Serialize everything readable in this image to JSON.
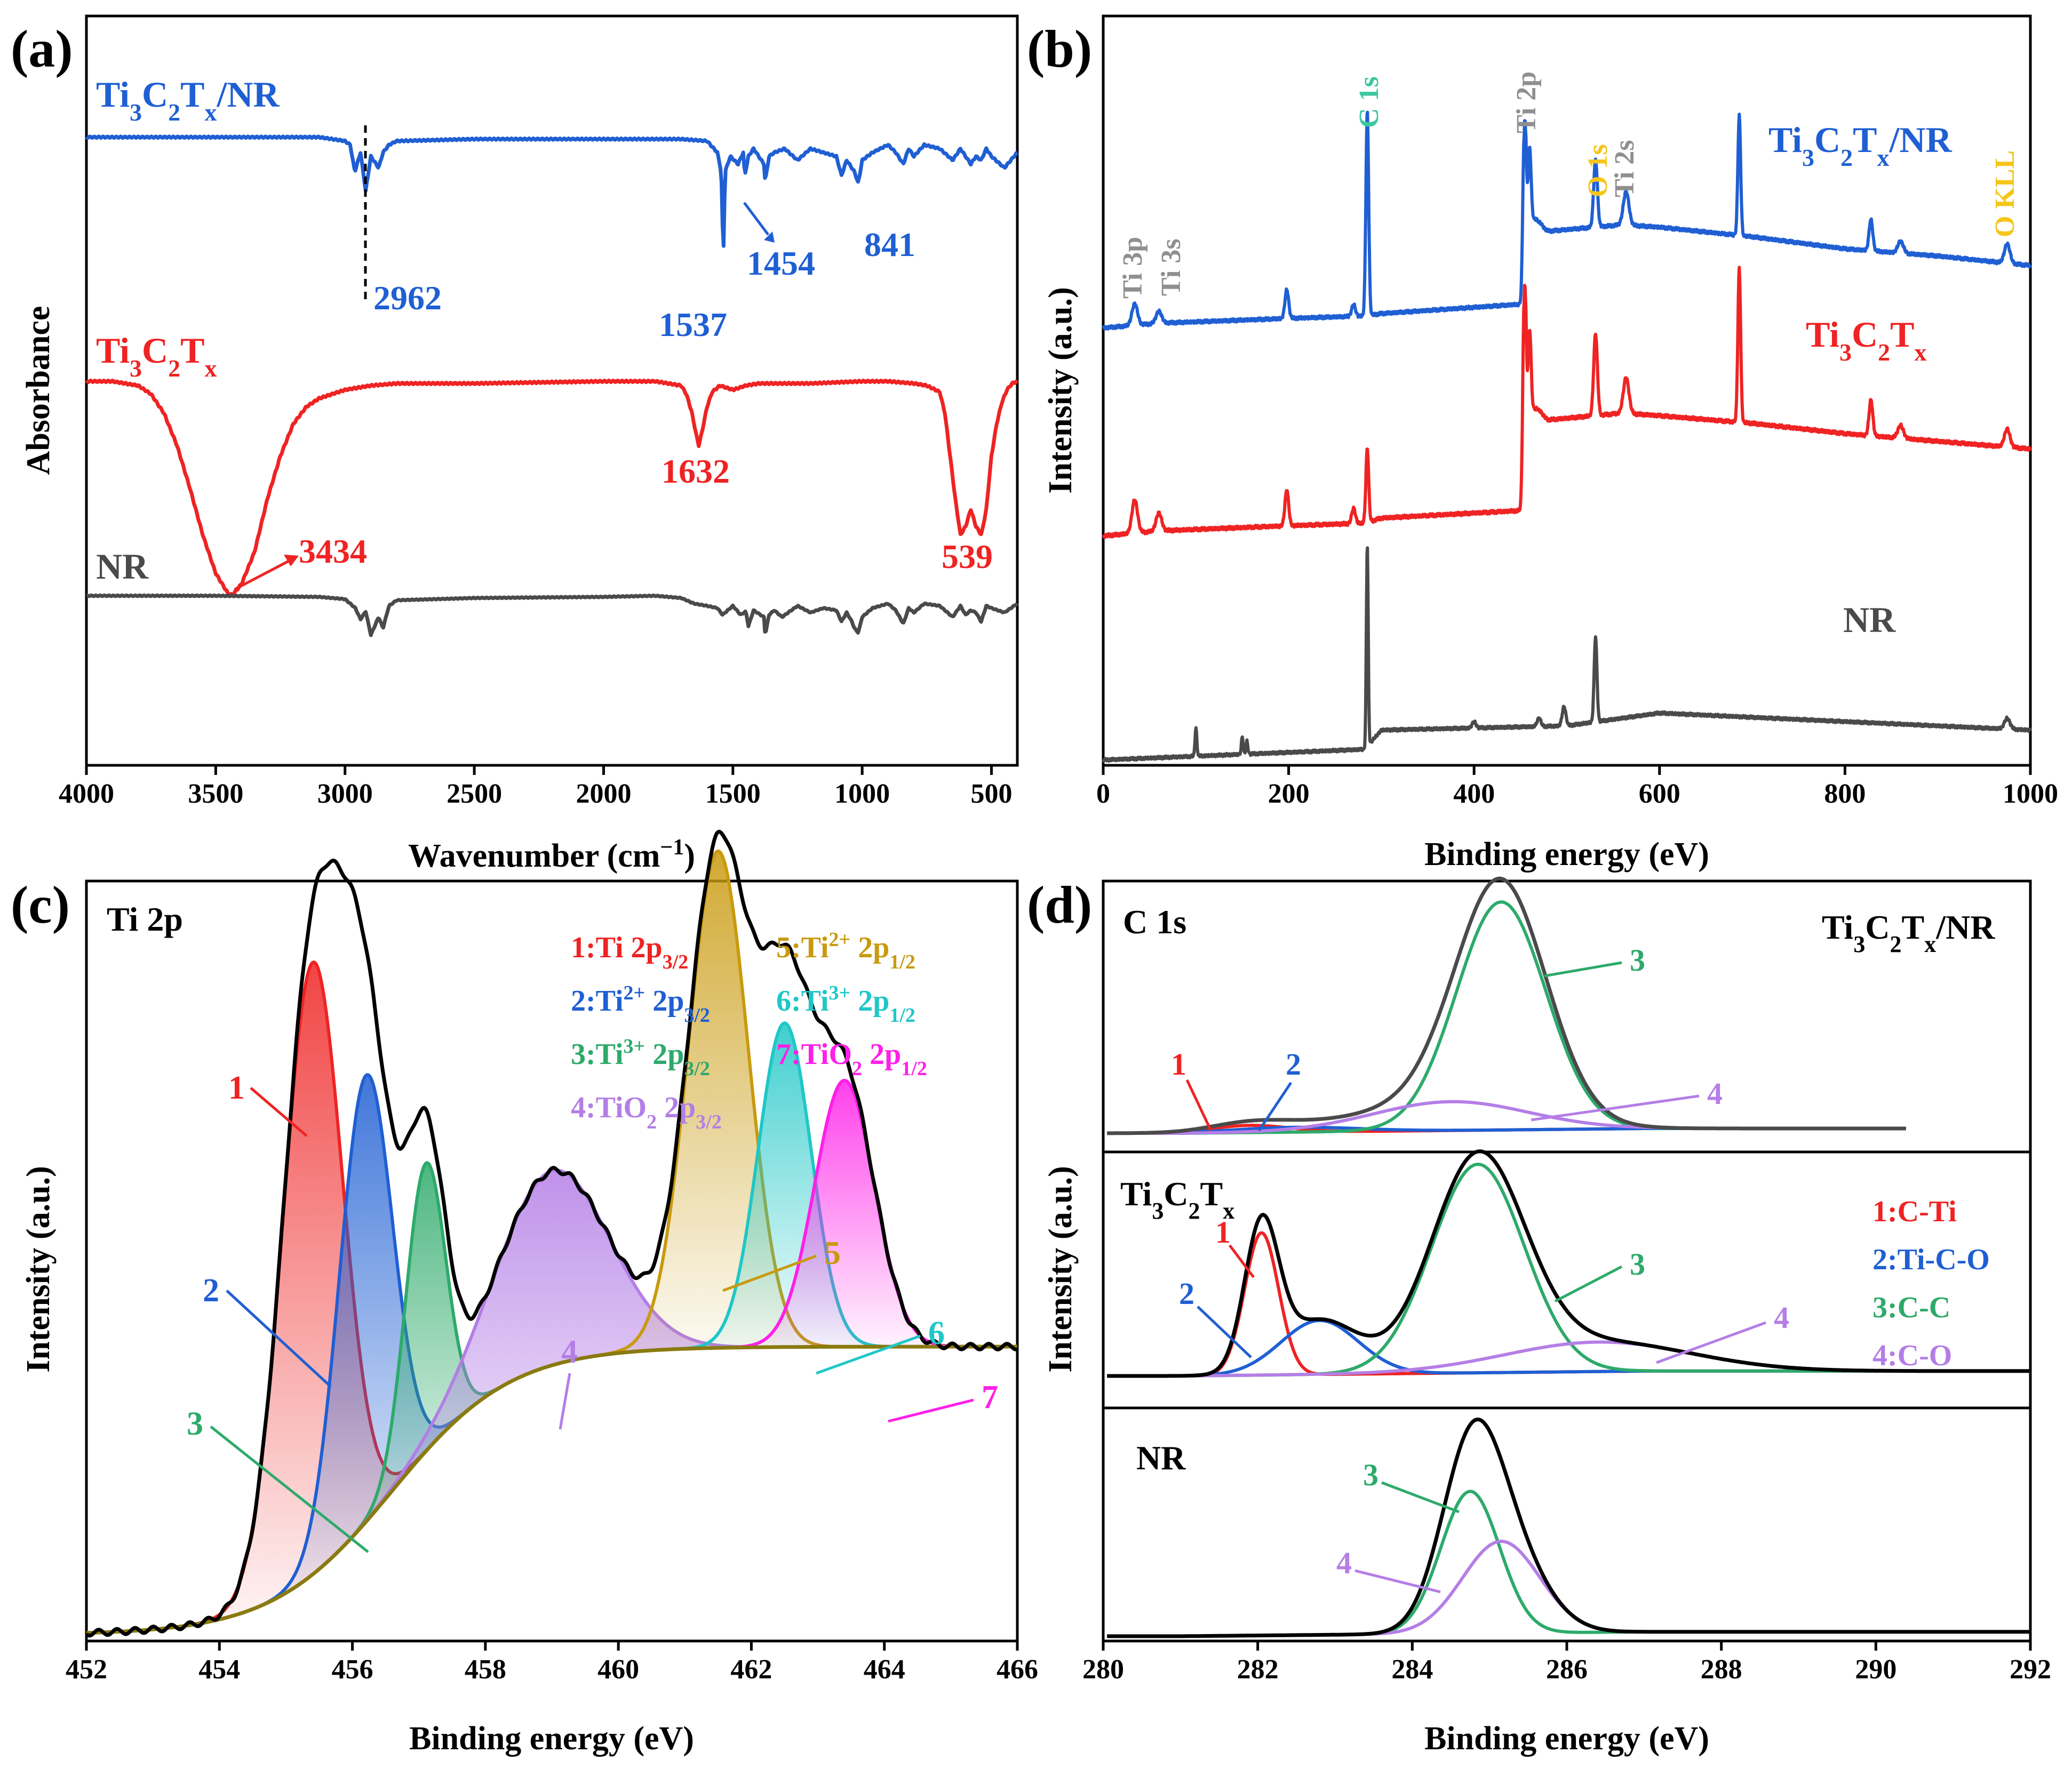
{
  "colors": {
    "blue": "#1f5fd3",
    "red": "#ef2323",
    "gray": "#4a4a4a",
    "black": "#000000",
    "green": "#2daa6a",
    "purple": "#b47ee6",
    "gold": "#c99a0e",
    "cyan": "#1fc7c7",
    "magenta": "#ff1fe8",
    "lightgray": "#8f8f8f",
    "teal": "#3cc7a0",
    "yellow": "#f5c518"
  },
  "chart_data": [
    {
      "panel": "(a)",
      "type": "line",
      "xlabel": "Wavenumber (cm−1)",
      "ylabel": "Absorbance",
      "xlim": [
        4000,
        400
      ],
      "xticks": [
        "4000",
        "3500",
        "3000",
        "2500",
        "2000",
        "1500",
        "1000",
        "500"
      ],
      "series": [
        {
          "name": "Ti3C2Tx/NR",
          "label": "Ti₃C₂Tₓ/NR",
          "color": "blue",
          "peaks": [
            "2962",
            "1537",
            "1454",
            "841"
          ],
          "x": [
            4000,
            3500,
            3100,
            3000,
            2980,
            2962,
            2940,
            2920,
            2900,
            2870,
            2853,
            2830,
            2800,
            2500,
            2000,
            1700,
            1600,
            1560,
            1545,
            1537,
            1530,
            1510,
            1480,
            1460,
            1454,
            1440,
            1420,
            1400,
            1380,
            1375,
            1360,
            1340,
            1300,
            1250,
            1200,
            1150,
            1100,
            1080,
            1060,
            1040,
            1030,
            1015,
            1000,
            960,
            900,
            870,
            841,
            820,
            800,
            760,
            700,
            650,
            620,
            600,
            580,
            560,
            540,
            520,
            500,
            450,
            400
          ],
          "y": [
            0.02,
            0.02,
            0.02,
            0.04,
            0.06,
            0.2,
            0.1,
            0.3,
            0.12,
            0.18,
            0.1,
            0.06,
            0.04,
            0.03,
            0.03,
            0.03,
            0.04,
            0.1,
            0.2,
            0.65,
            0.2,
            0.12,
            0.16,
            0.1,
            0.22,
            0.12,
            0.08,
            0.12,
            0.16,
            0.25,
            0.12,
            0.1,
            0.08,
            0.14,
            0.08,
            0.1,
            0.12,
            0.22,
            0.14,
            0.18,
            0.2,
            0.26,
            0.14,
            0.1,
            0.06,
            0.1,
            0.16,
            0.08,
            0.12,
            0.06,
            0.08,
            0.14,
            0.08,
            0.12,
            0.16,
            0.12,
            0.14,
            0.08,
            0.12,
            0.18,
            0.1
          ]
        },
        {
          "name": "Ti3C2Tx",
          "label": "Ti₃C₂Tₓ",
          "color": "red",
          "peaks": [
            "3434",
            "1632",
            "539"
          ],
          "x": [
            4000,
            3900,
            3800,
            3750,
            3700,
            3650,
            3600,
            3550,
            3500,
            3450,
            3434,
            3400,
            3350,
            3300,
            3250,
            3200,
            3150,
            3100,
            3000,
            2900,
            2800,
            2500,
            2000,
            1800,
            1700,
            1680,
            1660,
            1640,
            1632,
            1620,
            1600,
            1580,
            1550,
            1500,
            1450,
            1400,
            1200,
            1000,
            900,
            800,
            750,
            700,
            680,
            660,
            640,
            620,
            600,
            580,
            560,
            539,
            520,
            500,
            480,
            460,
            440,
            420,
            400
          ],
          "y": [
            0.0,
            0.0,
            0.02,
            0.06,
            0.15,
            0.3,
            0.5,
            0.72,
            0.9,
            1.0,
            1.0,
            0.95,
            0.8,
            0.55,
            0.35,
            0.2,
            0.12,
            0.08,
            0.04,
            0.02,
            0.01,
            0.01,
            0.0,
            0.0,
            0.02,
            0.06,
            0.14,
            0.26,
            0.3,
            0.24,
            0.12,
            0.05,
            0.02,
            0.04,
            0.02,
            0.01,
            0.01,
            0.0,
            0.0,
            0.01,
            0.02,
            0.05,
            0.15,
            0.35,
            0.55,
            0.72,
            0.68,
            0.6,
            0.68,
            0.72,
            0.6,
            0.35,
            0.2,
            0.1,
            0.04,
            0.01,
            0.0
          ]
        },
        {
          "name": "NR",
          "label": "NR",
          "color": "gray",
          "x": [
            4000,
            3500,
            3100,
            3000,
            2960,
            2940,
            2920,
            2900,
            2870,
            2853,
            2830,
            2800,
            2500,
            2000,
            1800,
            1700,
            1650,
            1600,
            1560,
            1540,
            1520,
            1500,
            1470,
            1450,
            1440,
            1420,
            1380,
            1375,
            1360,
            1340,
            1310,
            1250,
            1200,
            1150,
            1100,
            1080,
            1060,
            1040,
            1030,
            1015,
            1000,
            960,
            900,
            870,
            841,
            820,
            800,
            760,
            700,
            650,
            620,
            600,
            580,
            560,
            540,
            520,
            500,
            450,
            400
          ],
          "y": [
            0.01,
            0.01,
            0.02,
            0.04,
            0.12,
            0.22,
            0.15,
            0.36,
            0.2,
            0.3,
            0.1,
            0.05,
            0.03,
            0.02,
            0.01,
            0.03,
            0.08,
            0.1,
            0.12,
            0.18,
            0.14,
            0.1,
            0.18,
            0.15,
            0.28,
            0.14,
            0.2,
            0.36,
            0.18,
            0.14,
            0.2,
            0.1,
            0.16,
            0.12,
            0.14,
            0.24,
            0.16,
            0.24,
            0.3,
            0.34,
            0.2,
            0.12,
            0.08,
            0.14,
            0.26,
            0.12,
            0.16,
            0.08,
            0.1,
            0.2,
            0.1,
            0.18,
            0.14,
            0.16,
            0.24,
            0.1,
            0.12,
            0.16,
            0.08
          ]
        }
      ]
    },
    {
      "panel": "(b)",
      "type": "line",
      "xlabel": "Binding energy (eV)",
      "ylabel": "Intensity (a.u.)",
      "xlim": [
        0,
        1000
      ],
      "xticks": [
        "0",
        "200",
        "400",
        "600",
        "800",
        "1000"
      ],
      "annotations": [
        {
          "text": "Ti 3p",
          "color": "lightgray"
        },
        {
          "text": "Ti 3s",
          "color": "lightgray"
        },
        {
          "text": "C 1s",
          "color": "teal"
        },
        {
          "text": "Ti 2p",
          "color": "lightgray"
        },
        {
          "text": "O 1s",
          "color": "yellow"
        },
        {
          "text": "Ti 2s",
          "color": "lightgray"
        },
        {
          "text": "O KLL",
          "color": "yellow"
        }
      ],
      "series": [
        {
          "name": "Ti3C2Tx/NR",
          "label": "Ti₃C₂Tₓ/NR",
          "color": "blue",
          "base": [
            [
              0,
              0.0
            ],
            [
              60,
              0.02
            ],
            [
              200,
              0.04
            ],
            [
              282,
              0.05
            ],
            [
              300,
              0.06
            ],
            [
              454,
              0.1
            ],
            [
              456,
              0.5
            ],
            [
              470,
              0.4
            ],
            [
              560,
              0.43
            ],
            [
              600,
              0.42
            ],
            [
              700,
              0.38
            ],
            [
              800,
              0.33
            ],
            [
              900,
              0.3
            ],
            [
              1000,
              0.26
            ]
          ],
          "peaks": [
            [
              34,
              0.09,
              3
            ],
            [
              60,
              0.05,
              3
            ],
            [
              198,
              0.12,
              2
            ],
            [
              270,
              0.05,
              2
            ],
            [
              284.8,
              0.85,
              1.5
            ],
            [
              454,
              0.7,
              1.5
            ],
            [
              460,
              0.28,
              1.5
            ],
            [
              470,
              0.04,
              4
            ],
            [
              531,
              0.28,
              2
            ],
            [
              564,
              0.14,
              3
            ],
            [
              686,
              0.5,
              1.5
            ],
            [
              828,
              0.13,
              2
            ],
            [
              860,
              0.05,
              3
            ],
            [
              975,
              0.08,
              3
            ]
          ]
        },
        {
          "name": "Ti3C2Tx",
          "label": "Ti₃C₂Tₓ",
          "color": "red",
          "base": [
            [
              0,
              0.0
            ],
            [
              60,
              0.02
            ],
            [
              200,
              0.04
            ],
            [
              282,
              0.05
            ],
            [
              300,
              0.07
            ],
            [
              454,
              0.1
            ],
            [
              456,
              0.53
            ],
            [
              470,
              0.45
            ],
            [
              560,
              0.48
            ],
            [
              600,
              0.47
            ],
            [
              700,
              0.44
            ],
            [
              800,
              0.4
            ],
            [
              900,
              0.37
            ],
            [
              1000,
              0.34
            ]
          ],
          "peaks": [
            [
              34,
              0.13,
              3
            ],
            [
              60,
              0.07,
              3
            ],
            [
              198,
              0.14,
              2
            ],
            [
              270,
              0.06,
              2
            ],
            [
              284.8,
              0.29,
              1.5
            ],
            [
              454,
              0.82,
              1.5
            ],
            [
              460,
              0.3,
              1.5
            ],
            [
              470,
              0.04,
              4
            ],
            [
              531,
              0.32,
              2
            ],
            [
              564,
              0.14,
              3
            ],
            [
              686,
              0.6,
              1.5
            ],
            [
              828,
              0.14,
              2
            ],
            [
              860,
              0.05,
              3
            ],
            [
              975,
              0.07,
              3
            ]
          ]
        },
        {
          "name": "NR",
          "label": "NR",
          "color": "gray",
          "base": [
            [
              0,
              0.0
            ],
            [
              282,
              0.05
            ],
            [
              300,
              0.14
            ],
            [
              500,
              0.16
            ],
            [
              600,
              0.22
            ],
            [
              700,
              0.2
            ],
            [
              800,
              0.18
            ],
            [
              900,
              0.16
            ],
            [
              1000,
              0.14
            ]
          ],
          "peaks": [
            [
              100,
              0.13,
              1
            ],
            [
              150,
              0.08,
              1
            ],
            [
              155,
              0.06,
              1
            ],
            [
              284.8,
              0.95,
              1
            ],
            [
              400,
              0.03,
              2
            ],
            [
              470,
              0.04,
              2
            ],
            [
              497,
              0.09,
              2
            ],
            [
              531,
              0.4,
              1.5
            ],
            [
              975,
              0.05,
              3
            ]
          ]
        }
      ]
    },
    {
      "panel": "(c)",
      "type": "line",
      "title": "Ti 2p",
      "xlabel": "Binding energy (eV)",
      "ylabel": "Intensity (a.u.)",
      "xlim": [
        452,
        466
      ],
      "xticks": [
        "452",
        "454",
        "456",
        "458",
        "460",
        "462",
        "464",
        "466"
      ],
      "legend": [
        {
          "key": "1:Ti 2p",
          "sub": "3/2",
          "color": "red"
        },
        {
          "key": "2:Ti²⁺ 2p",
          "sub": "3/2",
          "color": "blue"
        },
        {
          "key": "3:Ti³⁺ 2p",
          "sub": "3/2",
          "color": "green"
        },
        {
          "key": "4:TiO₂ 2p",
          "sub": "3/2",
          "color": "purple"
        },
        {
          "key": "5:Ti²⁺ 2p",
          "sub": "1/2",
          "color": "gold"
        },
        {
          "key": "6:Ti³⁺ 2p",
          "sub": "1/2",
          "color": "cyan"
        },
        {
          "key": "7:TiO₂ 2p",
          "sub": "1/2",
          "color": "magenta"
        }
      ],
      "components": [
        {
          "n": "1",
          "center": 455.4,
          "height": 0.85,
          "width": 0.45,
          "color": "red"
        },
        {
          "n": "2",
          "center": 456.2,
          "height": 0.62,
          "width": 0.4,
          "color": "blue"
        },
        {
          "n": "3",
          "center": 457.1,
          "height": 0.4,
          "width": 0.3,
          "color": "green"
        },
        {
          "n": "4",
          "center": 459.0,
          "height": 0.27,
          "width": 0.85,
          "color": "purple"
        },
        {
          "n": "5",
          "center": 461.5,
          "height": 0.69,
          "width": 0.45,
          "color": "gold"
        },
        {
          "n": "6",
          "center": 462.5,
          "height": 0.45,
          "width": 0.4,
          "color": "cyan"
        },
        {
          "n": "7",
          "center": 463.4,
          "height": 0.37,
          "width": 0.45,
          "color": "magenta"
        }
      ],
      "background": {
        "low": 0.0,
        "high": 0.4,
        "center": 456.6,
        "width": 0.9
      }
    },
    {
      "panel": "(d)",
      "type": "line",
      "title": "C 1s",
      "xlabel": "Binding energy (eV)",
      "ylabel": "Intensity (a.u.)",
      "xlim": [
        280,
        292
      ],
      "xticks": [
        "280",
        "282",
        "284",
        "286",
        "288",
        "290",
        "292"
      ],
      "legend": [
        {
          "key": "1:C-Ti",
          "color": "red"
        },
        {
          "key": "2:Ti-C-O",
          "color": "blue"
        },
        {
          "key": "3:C-C",
          "color": "green"
        },
        {
          "key": "4:C-O",
          "color": "purple"
        }
      ],
      "subplots": [
        {
          "label": "Ti₃C₂Tₓ/NR",
          "envelope_color": "gray",
          "components": [
            {
              "n": "1",
              "center": 281.9,
              "height": 0.03,
              "width": 0.5,
              "color": "red"
            },
            {
              "n": "2",
              "center": 282.5,
              "height": 0.02,
              "width": 0.8,
              "color": "blue"
            },
            {
              "n": "3",
              "center": 285.15,
              "height": 0.95,
              "width": 0.58,
              "color": "green"
            },
            {
              "n": "4",
              "center": 284.5,
              "height": 0.12,
              "width": 1.0,
              "color": "purple"
            }
          ]
        },
        {
          "label": "Ti₃C₂Tₓ",
          "envelope_color": "black",
          "components": [
            {
              "n": "1",
              "center": 282.05,
              "height": 0.58,
              "width": 0.22,
              "color": "red"
            },
            {
              "n": "2",
              "center": 282.8,
              "height": 0.22,
              "width": 0.5,
              "color": "blue"
            },
            {
              "n": "3",
              "center": 284.85,
              "height": 0.85,
              "width": 0.6,
              "color": "green"
            },
            {
              "n": "4",
              "center": 286.4,
              "height": 0.12,
              "width": 1.2,
              "color": "purple"
            }
          ]
        },
        {
          "label": "NR",
          "envelope_color": "black",
          "components": [
            {
              "n": "3",
              "center": 284.75,
              "height": 0.65,
              "width": 0.38,
              "color": "green"
            },
            {
              "n": "4",
              "center": 285.15,
              "height": 0.42,
              "width": 0.5,
              "color": "purple"
            }
          ]
        }
      ]
    }
  ]
}
